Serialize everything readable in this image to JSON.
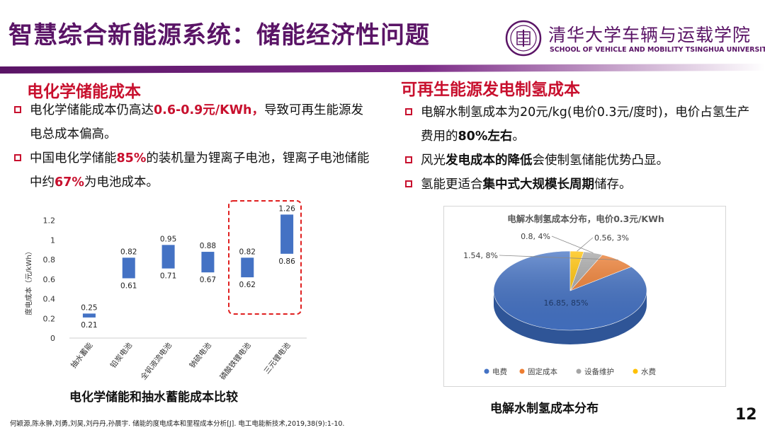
{
  "header": {
    "title": "智慧综合新能源系统：储能经济性问题",
    "university_cn": "清华大学车辆与运载学院",
    "university_en": "SCHOOL OF VEHICLE AND MOBILITY TSINGHUA UNIVERSITY"
  },
  "left": {
    "heading": "电化学储能成本",
    "bullets": [
      {
        "pre": "电化学储能成本仍高达",
        "hl": "0.6-0.9元/KWh，",
        "post": "导致可再生能源发电总成本偏高。"
      },
      {
        "pre": "中国电化学储能",
        "hl": "85%",
        "mid": "的装机量为锂离子电池，锂离子电池储能中约",
        "hl2": "67%",
        "post": "为电池成本。"
      }
    ],
    "chart_caption": "电化学储能和抽水蓄能成本比较"
  },
  "right": {
    "heading": "可再生能源发电制氢成本",
    "bullets": [
      {
        "pre": "电解水制氢成本为20元/kg(电价0.3元/度时)，电价占氢生产费用的",
        "hl": "80%左右",
        "post": "。"
      },
      {
        "pre": "风光",
        "hl": "发电成本的降低",
        "post": "会使制氢储能优势凸显。"
      },
      {
        "pre": "氢能更适合",
        "hl": "集中式大规模长周期",
        "post": "储存。"
      }
    ],
    "chart_caption": "电解水制氢成本分布"
  },
  "footer": {
    "reference": "何颖源,陈永翀,刘勇,刘昊,刘丹丹,孙晨宇. 储能的度电成本和里程成本分析[J]. 电工电能新技术,2019,38(9):1-10.",
    "page_number": "12"
  },
  "colors": {
    "purple": "#5a1466",
    "red": "#c8102e",
    "bar": "#4472c4",
    "pie_blue": "#4472c4",
    "pie_orange": "#ed7d31",
    "pie_gray": "#a5a5a5",
    "pie_yellow": "#ffc000"
  },
  "chart_data": [
    {
      "type": "bar",
      "title": "",
      "ylabel": "度电成本（元/kWh）",
      "ylim": [
        0,
        1.4
      ],
      "yticks": [
        "0",
        "0.2",
        "0.4",
        "0.6",
        "0.8",
        "1",
        "1.2"
      ],
      "categories": [
        "抽水蓄能",
        "铅炭电池",
        "全钒液流电池",
        "钠硫电池",
        "磷酸铁锂电池",
        "三元锂电池"
      ],
      "low": [
        0.21,
        0.61,
        0.71,
        0.67,
        0.62,
        0.86
      ],
      "high": [
        0.25,
        0.82,
        0.95,
        0.88,
        0.82,
        1.26
      ],
      "low_labels": [
        "0.21",
        "0.61",
        "0.71",
        "0.67",
        "0.62",
        "0.86"
      ],
      "high_labels": [
        "0.25",
        "0.82",
        "0.95",
        "0.88",
        "0.82",
        "1.26"
      ],
      "highlighted": [
        "磷酸铁锂电池",
        "三元锂电池"
      ]
    },
    {
      "type": "pie",
      "title": "电解水制氢成本分布，电价0.3元/KWh",
      "categories": [
        "电费",
        "固定成本",
        "设备维护",
        "水费"
      ],
      "values": [
        16.85,
        1.54,
        0.8,
        0.56
      ],
      "labels": [
        "16.85, 85%",
        "1.54, 8%",
        "0.8, 4%",
        "0.56, 3%"
      ],
      "legend": "bottom"
    }
  ]
}
